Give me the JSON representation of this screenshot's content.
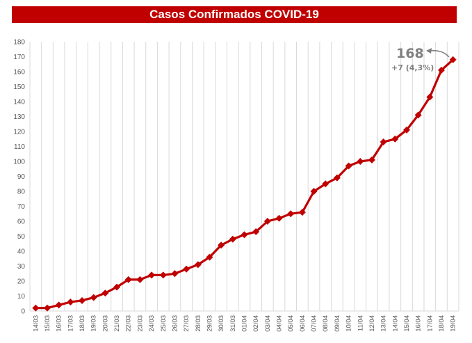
{
  "title": "Casos Confirmados COVID-19",
  "colors": {
    "title_bg": "#c00000",
    "title_text": "#ffffff",
    "series": "#c00000",
    "grid": "#d9d9d9",
    "axis_text": "#595959",
    "annotation": "#7f7f7f"
  },
  "annotation": {
    "value": "168",
    "delta": "+7 (4,3%)"
  },
  "chart_data": {
    "type": "line",
    "title": "Casos Confirmados COVID-19",
    "xlabel": "",
    "ylabel": "",
    "ylim": [
      0,
      180
    ],
    "yticks": [
      0,
      10,
      20,
      30,
      40,
      50,
      60,
      70,
      80,
      90,
      100,
      110,
      120,
      130,
      140,
      150,
      160,
      170,
      180
    ],
    "grid": "vertical",
    "legend": "none",
    "categories": [
      "14/03",
      "15/03",
      "16/03",
      "17/03",
      "18/03",
      "19/03",
      "20/03",
      "21/03",
      "22/03",
      "23/03",
      "24/03",
      "25/03",
      "26/03",
      "27/03",
      "28/03",
      "29/03",
      "30/03",
      "31/03",
      "01/04",
      "02/04",
      "03/04",
      "04/04",
      "05/04",
      "06/04",
      "07/04",
      "08/04",
      "09/04",
      "10/04",
      "11/04",
      "12/04",
      "13/04",
      "14/04",
      "15/04",
      "16/04",
      "17/04",
      "18/04",
      "19/04"
    ],
    "series": [
      {
        "name": "Casos Confirmados",
        "values": [
          2,
          2,
          4,
          6,
          7,
          9,
          12,
          16,
          21,
          21,
          24,
          24,
          25,
          28,
          31,
          36,
          44,
          48,
          51,
          53,
          60,
          62,
          65,
          66,
          80,
          85,
          89,
          97,
          100,
          101,
          113,
          115,
          121,
          131,
          143,
          161,
          168
        ]
      }
    ],
    "annotations": [
      {
        "text": "168",
        "subtext": "+7 (4,3%)",
        "points_to": "19/04"
      }
    ]
  }
}
